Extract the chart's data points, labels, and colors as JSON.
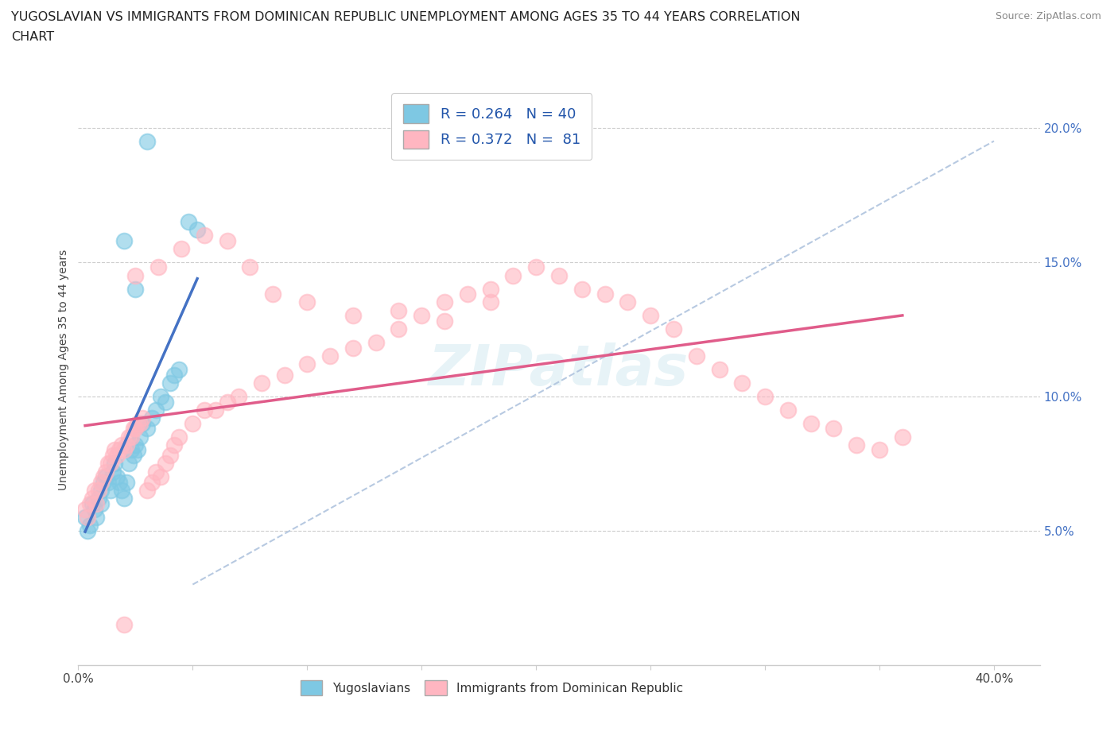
{
  "title": "YUGOSLAVIAN VS IMMIGRANTS FROM DOMINICAN REPUBLIC UNEMPLOYMENT AMONG AGES 35 TO 44 YEARS CORRELATION\nCHART",
  "source_text": "Source: ZipAtlas.com",
  "ylabel": "Unemployment Among Ages 35 to 44 years",
  "xlim": [
    0.0,
    0.42
  ],
  "ylim": [
    0.0,
    0.22
  ],
  "yticks": [
    0.05,
    0.1,
    0.15,
    0.2
  ],
  "ytick_labels": [
    "5.0%",
    "10.0%",
    "15.0%",
    "20.0%"
  ],
  "xticks": [
    0.0,
    0.05,
    0.1,
    0.15,
    0.2,
    0.25,
    0.3,
    0.35,
    0.4
  ],
  "xtick_labels": [
    "0.0%",
    "",
    "",
    "",
    "",
    "",
    "",
    "",
    "40.0%"
  ],
  "blue_color": "#7ec8e3",
  "pink_color": "#ffb6c1",
  "trendline_blue": "#4472c4",
  "trendline_pink": "#e05c8a",
  "trendline_dashed_color": "#b0c4de",
  "R_blue": 0.264,
  "N_blue": 40,
  "R_pink": 0.372,
  "N_pink": 81,
  "blue_points_x": [
    0.003,
    0.004,
    0.005,
    0.006,
    0.007,
    0.008,
    0.009,
    0.01,
    0.01,
    0.011,
    0.012,
    0.013,
    0.014,
    0.015,
    0.016,
    0.017,
    0.018,
    0.019,
    0.02,
    0.021,
    0.022,
    0.023,
    0.024,
    0.025,
    0.026,
    0.027,
    0.028,
    0.03,
    0.032,
    0.034,
    0.036,
    0.038,
    0.04,
    0.042,
    0.044,
    0.048,
    0.052,
    0.02,
    0.025,
    0.03
  ],
  "blue_points_y": [
    0.055,
    0.05,
    0.052,
    0.06,
    0.058,
    0.055,
    0.062,
    0.065,
    0.06,
    0.068,
    0.07,
    0.068,
    0.065,
    0.072,
    0.075,
    0.07,
    0.068,
    0.065,
    0.062,
    0.068,
    0.075,
    0.08,
    0.078,
    0.082,
    0.08,
    0.085,
    0.09,
    0.088,
    0.092,
    0.095,
    0.1,
    0.098,
    0.105,
    0.108,
    0.11,
    0.165,
    0.162,
    0.158,
    0.14,
    0.195
  ],
  "pink_points_x": [
    0.003,
    0.004,
    0.005,
    0.006,
    0.007,
    0.008,
    0.009,
    0.01,
    0.011,
    0.012,
    0.013,
    0.014,
    0.015,
    0.016,
    0.017,
    0.018,
    0.019,
    0.02,
    0.021,
    0.022,
    0.023,
    0.024,
    0.025,
    0.026,
    0.027,
    0.028,
    0.03,
    0.032,
    0.034,
    0.036,
    0.038,
    0.04,
    0.042,
    0.044,
    0.05,
    0.055,
    0.06,
    0.065,
    0.07,
    0.08,
    0.09,
    0.1,
    0.11,
    0.12,
    0.13,
    0.14,
    0.15,
    0.16,
    0.17,
    0.18,
    0.19,
    0.2,
    0.21,
    0.22,
    0.23,
    0.24,
    0.25,
    0.26,
    0.27,
    0.28,
    0.29,
    0.3,
    0.31,
    0.32,
    0.33,
    0.34,
    0.35,
    0.025,
    0.035,
    0.045,
    0.055,
    0.065,
    0.075,
    0.085,
    0.1,
    0.12,
    0.14,
    0.16,
    0.18,
    0.36,
    0.02
  ],
  "pink_points_y": [
    0.058,
    0.055,
    0.06,
    0.062,
    0.065,
    0.06,
    0.065,
    0.068,
    0.07,
    0.072,
    0.075,
    0.075,
    0.078,
    0.08,
    0.078,
    0.08,
    0.082,
    0.08,
    0.082,
    0.085,
    0.085,
    0.088,
    0.088,
    0.09,
    0.09,
    0.092,
    0.065,
    0.068,
    0.072,
    0.07,
    0.075,
    0.078,
    0.082,
    0.085,
    0.09,
    0.095,
    0.095,
    0.098,
    0.1,
    0.105,
    0.108,
    0.112,
    0.115,
    0.118,
    0.12,
    0.125,
    0.13,
    0.135,
    0.138,
    0.14,
    0.145,
    0.148,
    0.145,
    0.14,
    0.138,
    0.135,
    0.13,
    0.125,
    0.115,
    0.11,
    0.105,
    0.1,
    0.095,
    0.09,
    0.088,
    0.082,
    0.08,
    0.145,
    0.148,
    0.155,
    0.16,
    0.158,
    0.148,
    0.138,
    0.135,
    0.13,
    0.132,
    0.128,
    0.135,
    0.085,
    0.015
  ]
}
